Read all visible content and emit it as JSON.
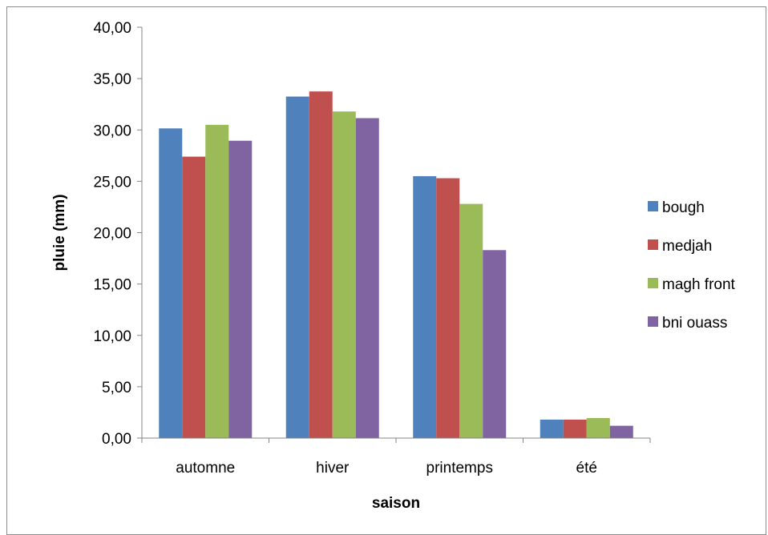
{
  "chart_data": {
    "type": "bar",
    "title": "",
    "xlabel": "saison",
    "ylabel": "pluie (mm)",
    "categories": [
      "automne",
      "hiver",
      "printemps",
      "été"
    ],
    "ylim": [
      0,
      40
    ],
    "yticks": [
      0,
      5,
      10,
      15,
      20,
      25,
      30,
      35,
      40
    ],
    "ytick_labels": [
      "0,00",
      "5,00",
      "10,00",
      "15,00",
      "20,00",
      "25,00",
      "30,00",
      "35,00",
      "40,00"
    ],
    "grid": false,
    "legend_position": "right",
    "series": [
      {
        "name": "bough",
        "color": "#4F81BD",
        "values": [
          30.15,
          33.25,
          25.5,
          1.8
        ]
      },
      {
        "name": "medjah",
        "color": "#C0504D",
        "values": [
          27.4,
          33.75,
          25.3,
          1.8
        ]
      },
      {
        "name": "magh front",
        "color": "#9BBB59",
        "values": [
          30.5,
          31.8,
          22.8,
          1.95
        ]
      },
      {
        "name": "bni ouass",
        "color": "#8064A2",
        "values": [
          28.95,
          31.15,
          18.3,
          1.2
        ]
      }
    ]
  }
}
